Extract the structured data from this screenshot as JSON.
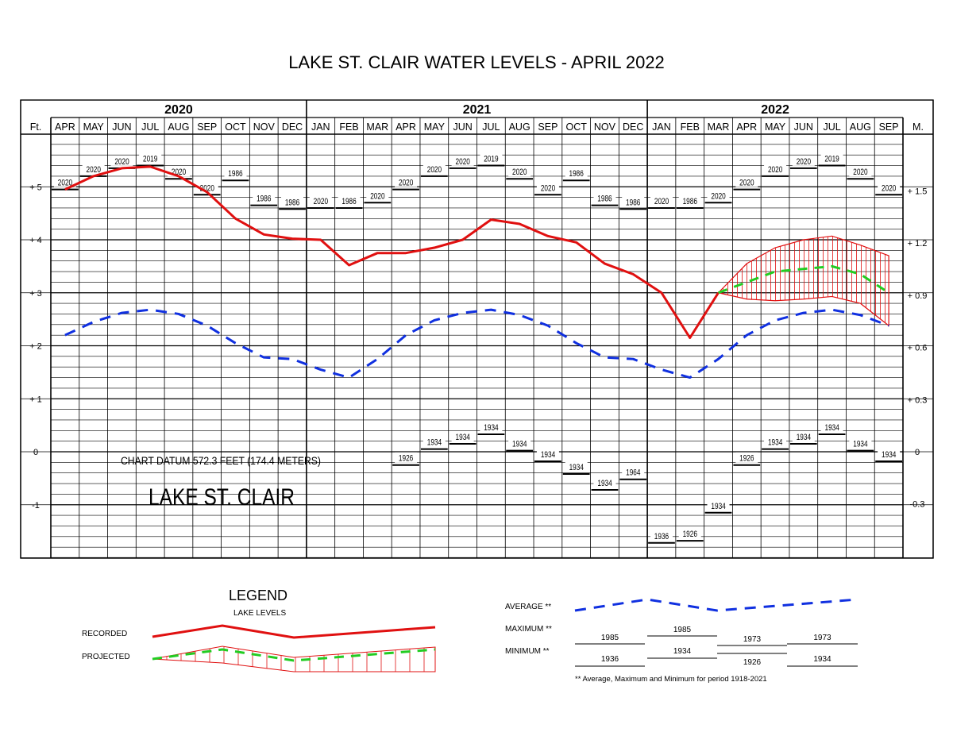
{
  "title": "LAKE ST. CLAIR WATER LEVELS - APRIL 2022",
  "colors": {
    "recorded": "#e01010",
    "average": "#1030e0",
    "projected": "#22cc22",
    "grid": "#000000"
  },
  "chart_data": {
    "type": "line",
    "title": "LAKE ST. CLAIR WATER LEVELS - APRIL 2022",
    "years": [
      "2020",
      "2021",
      "2022"
    ],
    "months": [
      "APR",
      "MAY",
      "JUN",
      "JUL",
      "AUG",
      "SEP",
      "OCT",
      "NOV",
      "DEC",
      "JAN",
      "FEB",
      "MAR",
      "APR",
      "MAY",
      "JUN",
      "JUL",
      "AUG",
      "SEP",
      "OCT",
      "NOV",
      "DEC",
      "JAN",
      "FEB",
      "MAR",
      "APR",
      "MAY",
      "JUN",
      "JUL",
      "AUG",
      "SEP"
    ],
    "left_axis_unit": "Ft.",
    "right_axis_unit": "M.",
    "left_ticks": [
      {
        "value": 5,
        "label": "+ 5"
      },
      {
        "value": 4,
        "label": "+ 4"
      },
      {
        "value": 3,
        "label": "+ 3"
      },
      {
        "value": 2,
        "label": "+ 2"
      },
      {
        "value": 1,
        "label": "+ 1"
      },
      {
        "value": 0,
        "label": "0"
      },
      {
        "value": -1,
        "label": "-1"
      }
    ],
    "right_ticks": [
      {
        "value": 1.5,
        "label": "+ 1.5"
      },
      {
        "value": 1.2,
        "label": "+ 1.2"
      },
      {
        "value": 0.9,
        "label": "+ 0.9"
      },
      {
        "value": 0.6,
        "label": "+ 0.6"
      },
      {
        "value": 0.3,
        "label": "+ 0.3"
      },
      {
        "value": 0,
        "label": "0"
      },
      {
        "value": -0.3,
        "label": "-0.3"
      }
    ],
    "ylim": [
      -2,
      6
    ],
    "series": [
      {
        "name": "RECORDED",
        "style": "solid",
        "points": [
          [
            0,
            4.95
          ],
          [
            1,
            5.2
          ],
          [
            2,
            5.35
          ],
          [
            3,
            5.38
          ],
          [
            4,
            5.2
          ],
          [
            5,
            4.9
          ],
          [
            6,
            4.4
          ],
          [
            7,
            4.1
          ],
          [
            8,
            4.02
          ],
          [
            9,
            4.0
          ],
          [
            10,
            3.52
          ],
          [
            11,
            3.75
          ],
          [
            12,
            3.75
          ],
          [
            13,
            3.85
          ],
          [
            14,
            4.0
          ],
          [
            15,
            4.38
          ],
          [
            16,
            4.3
          ],
          [
            17,
            4.07
          ],
          [
            18,
            3.95
          ],
          [
            19,
            3.55
          ],
          [
            20,
            3.35
          ],
          [
            21,
            3.0
          ],
          [
            22,
            2.15
          ],
          [
            23,
            3.0
          ]
        ]
      },
      {
        "name": "AVERAGE",
        "style": "dashed",
        "points": [
          [
            0,
            2.2
          ],
          [
            1,
            2.45
          ],
          [
            2,
            2.62
          ],
          [
            3,
            2.68
          ],
          [
            4,
            2.6
          ],
          [
            5,
            2.38
          ],
          [
            6,
            2.05
          ],
          [
            7,
            1.78
          ],
          [
            8,
            1.75
          ],
          [
            9,
            1.55
          ],
          [
            10,
            1.4
          ],
          [
            11,
            1.75
          ],
          [
            12,
            2.2
          ],
          [
            13,
            2.48
          ],
          [
            14,
            2.62
          ],
          [
            15,
            2.68
          ],
          [
            16,
            2.58
          ],
          [
            17,
            2.38
          ],
          [
            18,
            2.05
          ],
          [
            19,
            1.78
          ],
          [
            20,
            1.75
          ],
          [
            21,
            1.55
          ],
          [
            22,
            1.4
          ],
          [
            23,
            1.75
          ],
          [
            24,
            2.2
          ],
          [
            25,
            2.48
          ],
          [
            26,
            2.62
          ],
          [
            27,
            2.68
          ],
          [
            28,
            2.58
          ],
          [
            29,
            2.38
          ]
        ]
      },
      {
        "name": "PROJECTED",
        "style": "dashed",
        "points": [
          [
            23,
            3.0
          ],
          [
            24,
            3.2
          ],
          [
            25,
            3.4
          ],
          [
            26,
            3.45
          ],
          [
            27,
            3.5
          ],
          [
            28,
            3.35
          ],
          [
            29,
            3.0
          ]
        ]
      }
    ],
    "projected_range": {
      "upper": [
        [
          23,
          3.0
        ],
        [
          24,
          3.55
        ],
        [
          25,
          3.85
        ],
        [
          26,
          4.0
        ],
        [
          27,
          4.07
        ],
        [
          28,
          3.9
        ],
        [
          29,
          3.7
        ]
      ],
      "lower": [
        [
          23,
          3.0
        ],
        [
          24,
          2.88
        ],
        [
          25,
          2.85
        ],
        [
          26,
          2.88
        ],
        [
          27,
          2.93
        ],
        [
          28,
          2.8
        ],
        [
          29,
          2.38
        ]
      ]
    },
    "maximum_records": [
      {
        "month": 0,
        "value": 4.95,
        "year": "2020"
      },
      {
        "month": 1,
        "value": 5.2,
        "year": "2020"
      },
      {
        "month": 2,
        "value": 5.35,
        "year": "2020"
      },
      {
        "month": 3,
        "value": 5.4,
        "year": "2019"
      },
      {
        "month": 4,
        "value": 5.15,
        "year": "2020"
      },
      {
        "month": 5,
        "value": 4.85,
        "year": "2020"
      },
      {
        "month": 6,
        "value": 5.12,
        "year": "1986"
      },
      {
        "month": 7,
        "value": 4.65,
        "year": "1986"
      },
      {
        "month": 8,
        "value": 4.58,
        "year": "1986"
      },
      {
        "month": 9,
        "value": 4.6,
        "year": "2020"
      },
      {
        "month": 10,
        "value": 4.6,
        "year": "1986"
      },
      {
        "month": 11,
        "value": 4.7,
        "year": "2020"
      },
      {
        "month": 12,
        "value": 4.95,
        "year": "2020"
      },
      {
        "month": 13,
        "value": 5.2,
        "year": "2020"
      },
      {
        "month": 14,
        "value": 5.35,
        "year": "2020"
      },
      {
        "month": 15,
        "value": 5.4,
        "year": "2019"
      },
      {
        "month": 16,
        "value": 5.15,
        "year": "2020"
      },
      {
        "month": 17,
        "value": 4.85,
        "year": "2020"
      },
      {
        "month": 18,
        "value": 5.12,
        "year": "1986"
      },
      {
        "month": 19,
        "value": 4.65,
        "year": "1986"
      },
      {
        "month": 20,
        "value": 4.58,
        "year": "1986"
      },
      {
        "month": 21,
        "value": 4.6,
        "year": "2020"
      },
      {
        "month": 22,
        "value": 4.6,
        "year": "1986"
      },
      {
        "month": 23,
        "value": 4.7,
        "year": "2020"
      },
      {
        "month": 24,
        "value": 4.95,
        "year": "2020"
      },
      {
        "month": 25,
        "value": 5.2,
        "year": "2020"
      },
      {
        "month": 26,
        "value": 5.35,
        "year": "2020"
      },
      {
        "month": 27,
        "value": 5.4,
        "year": "2019"
      },
      {
        "month": 28,
        "value": 5.15,
        "year": "2020"
      },
      {
        "month": 29,
        "value": 4.85,
        "year": "2020"
      }
    ],
    "minimum_records": [
      {
        "month": 12,
        "value": -0.25,
        "year": "1926"
      },
      {
        "month": 13,
        "value": 0.05,
        "year": "1934"
      },
      {
        "month": 14,
        "value": 0.15,
        "year": "1934"
      },
      {
        "month": 15,
        "value": 0.33,
        "year": "1934"
      },
      {
        "month": 16,
        "value": 0.02,
        "year": "1934"
      },
      {
        "month": 17,
        "value": -0.18,
        "year": "1934"
      },
      {
        "month": 18,
        "value": -0.42,
        "year": "1934"
      },
      {
        "month": 19,
        "value": -0.72,
        "year": "1934"
      },
      {
        "month": 20,
        "value": -0.52,
        "year": "1964"
      },
      {
        "month": 21,
        "value": -1.72,
        "year": "1936"
      },
      {
        "month": 22,
        "value": -1.68,
        "year": "1926"
      },
      {
        "month": 23,
        "value": -1.15,
        "year": "1934"
      },
      {
        "month": 24,
        "value": -0.25,
        "year": "1926"
      },
      {
        "month": 25,
        "value": 0.05,
        "year": "1934"
      },
      {
        "month": 26,
        "value": 0.15,
        "year": "1934"
      },
      {
        "month": 27,
        "value": 0.33,
        "year": "1934"
      },
      {
        "month": 28,
        "value": 0.02,
        "year": "1934"
      },
      {
        "month": 29,
        "value": -0.18,
        "year": "1934"
      }
    ],
    "annotations": {
      "datum": "CHART DATUM  572.3 FEET (174.4 METERS)",
      "lake_name": "LAKE ST. CLAIR"
    }
  },
  "legend": {
    "title": "LEGEND",
    "subtitle": "LAKE LEVELS",
    "recorded": "RECORDED",
    "projected": "PROJECTED",
    "average": "AVERAGE **",
    "maximum": "MAXIMUM **",
    "minimum": "MINIMUM **",
    "maximum_years": [
      "1985",
      "1985",
      "1973",
      "1973"
    ],
    "minimum_years": [
      "1936",
      "1934",
      "1926",
      "1934"
    ],
    "footnote": "** Average, Maximum and Minimum for period 1918-2021"
  }
}
